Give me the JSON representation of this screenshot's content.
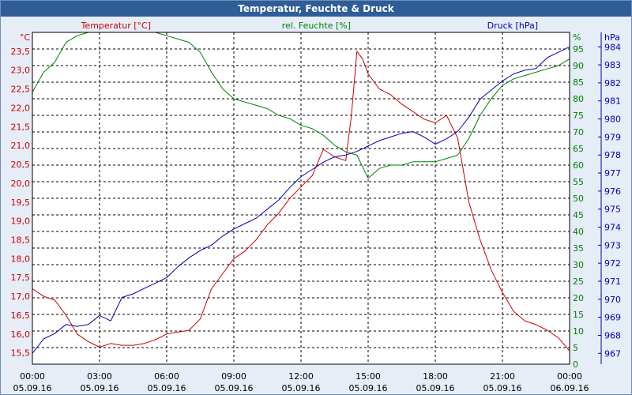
{
  "window": {
    "title": "Temperatur, Feuchte & Druck"
  },
  "colors": {
    "temperature": "#cc0000",
    "humidity": "#008000",
    "pressure": "#0000b0",
    "grid": "#000000",
    "background": "#ffffff"
  },
  "chart_data": {
    "type": "line",
    "title": "Temperatur, Feuchte & Druck",
    "grid": true,
    "x_ticks": [
      {
        "time": "00:00",
        "date": "05.09.16"
      },
      {
        "time": "03:00",
        "date": "05.09.16"
      },
      {
        "time": "06:00",
        "date": "05.09.16"
      },
      {
        "time": "09:00",
        "date": "05.09.16"
      },
      {
        "time": "12:00",
        "date": "05.09.16"
      },
      {
        "time": "15:00",
        "date": "05.09.16"
      },
      {
        "time": "18:00",
        "date": "05.09.16"
      },
      {
        "time": "21:00",
        "date": "05.09.16"
      },
      {
        "time": "00:00",
        "date": "06.09.16"
      }
    ],
    "xlim": [
      "2016-09-05 00:00",
      "2016-09-06 00:00"
    ],
    "axes": {
      "temperature": {
        "label": "Temperatur [°C]",
        "unit": "°C",
        "ylim": [
          15.2,
          24.0
        ],
        "ticks": [
          "15,5",
          "16,0",
          "16,5",
          "17,0",
          "17,5",
          "18,0",
          "18,5",
          "19,0",
          "19,5",
          "20,0",
          "20,5",
          "21,0",
          "21,5",
          "22,0",
          "22,5",
          "23,0",
          "23,5"
        ]
      },
      "humidity": {
        "label": "rel. Feuchte [%]",
        "unit": "%",
        "ylim": [
          0,
          100
        ],
        "ticks": [
          "0",
          "5",
          "10",
          "15",
          "20",
          "25",
          "30",
          "35",
          "40",
          "45",
          "50",
          "55",
          "60",
          "65",
          "70",
          "75",
          "80",
          "85",
          "90",
          "95"
        ]
      },
      "pressure": {
        "label": "Druck [hPa]",
        "unit": "hPa",
        "ylim": [
          966.4,
          984.8
        ],
        "ticks": [
          "967",
          "968",
          "969",
          "970",
          "971",
          "972",
          "973",
          "974",
          "975",
          "976",
          "977",
          "978",
          "979",
          "980",
          "981",
          "982",
          "983",
          "984"
        ]
      }
    },
    "series": [
      {
        "name": "Temperatur [°C]",
        "axis": "temperature",
        "x": [
          "00:00",
          "00:30",
          "01:00",
          "01:30",
          "02:00",
          "02:30",
          "03:00",
          "03:30",
          "04:00",
          "04:30",
          "05:00",
          "05:30",
          "06:00",
          "06:30",
          "07:00",
          "07:30",
          "08:00",
          "08:30",
          "09:00",
          "09:30",
          "10:00",
          "10:30",
          "11:00",
          "11:30",
          "12:00",
          "12:30",
          "13:00",
          "13:30",
          "14:00",
          "14:15",
          "14:30",
          "14:45",
          "15:00",
          "15:30",
          "16:00",
          "16:30",
          "17:00",
          "17:30",
          "18:00",
          "18:30",
          "19:00",
          "19:30",
          "20:00",
          "20:30",
          "21:00",
          "21:30",
          "22:00",
          "22:30",
          "23:00",
          "23:30",
          "24:00"
        ],
        "y": [
          17.2,
          17.0,
          16.9,
          16.5,
          16.0,
          15.8,
          15.65,
          15.75,
          15.7,
          15.7,
          15.75,
          15.85,
          16.0,
          16.05,
          16.1,
          16.4,
          17.2,
          17.6,
          18.0,
          18.2,
          18.5,
          18.9,
          19.2,
          19.6,
          19.9,
          20.2,
          20.9,
          20.7,
          20.6,
          21.8,
          23.5,
          23.3,
          22.9,
          22.5,
          22.35,
          22.1,
          21.9,
          21.7,
          21.6,
          21.8,
          21.2,
          19.5,
          18.5,
          17.7,
          17.1,
          16.6,
          16.35,
          16.25,
          16.1,
          15.9,
          15.55
        ]
      },
      {
        "name": "rel. Feuchte [%]",
        "axis": "humidity",
        "x": [
          "00:00",
          "00:30",
          "01:00",
          "01:30",
          "02:00",
          "02:30",
          "03:00",
          "03:30",
          "04:00",
          "04:30",
          "05:00",
          "05:30",
          "06:00",
          "06:30",
          "07:00",
          "07:30",
          "08:00",
          "08:30",
          "09:00",
          "09:30",
          "10:00",
          "10:30",
          "11:00",
          "11:30",
          "12:00",
          "12:30",
          "13:00",
          "13:30",
          "14:00",
          "14:30",
          "15:00",
          "15:30",
          "16:00",
          "16:30",
          "17:00",
          "17:30",
          "18:00",
          "18:30",
          "19:00",
          "19:30",
          "20:00",
          "20:30",
          "21:00",
          "21:30",
          "22:00",
          "22:30",
          "23:00",
          "23:30",
          "24:00"
        ],
        "y": [
          82,
          88,
          91,
          97,
          99,
          100,
          100,
          100,
          100,
          100,
          100,
          100,
          99,
          98,
          97,
          94,
          88,
          83,
          80,
          79,
          78,
          77,
          75,
          74,
          72,
          71,
          69,
          66,
          64,
          63,
          56,
          59,
          60,
          60,
          61,
          61,
          61,
          62,
          63,
          68,
          75,
          80,
          84,
          86,
          87,
          88,
          89,
          90,
          92
        ]
      },
      {
        "name": "Druck [hPa]",
        "axis": "pressure",
        "x": [
          "00:00",
          "00:30",
          "01:00",
          "01:30",
          "02:00",
          "02:30",
          "03:00",
          "03:30",
          "04:00",
          "04:30",
          "05:00",
          "05:30",
          "06:00",
          "06:30",
          "07:00",
          "07:30",
          "08:00",
          "08:30",
          "09:00",
          "09:30",
          "10:00",
          "10:30",
          "11:00",
          "11:30",
          "12:00",
          "12:30",
          "13:00",
          "13:30",
          "14:00",
          "14:30",
          "15:00",
          "15:30",
          "16:00",
          "16:30",
          "17:00",
          "17:30",
          "18:00",
          "18:30",
          "19:00",
          "19:30",
          "20:00",
          "20:30",
          "21:00",
          "21:30",
          "22:00",
          "22:30",
          "23:00",
          "23:30",
          "24:00"
        ],
        "y": [
          967.0,
          967.8,
          968.1,
          968.6,
          968.5,
          968.6,
          969.1,
          968.8,
          970.1,
          970.3,
          970.6,
          970.9,
          971.2,
          971.8,
          972.3,
          972.7,
          973.0,
          973.5,
          973.9,
          974.2,
          974.5,
          975.0,
          975.5,
          976.2,
          976.8,
          977.2,
          977.6,
          977.9,
          978.0,
          978.2,
          978.5,
          978.8,
          979.0,
          979.2,
          979.3,
          979.0,
          978.6,
          978.9,
          979.3,
          980.1,
          981.1,
          981.6,
          982.1,
          982.5,
          982.7,
          982.8,
          983.4,
          983.7,
          984.0
        ]
      }
    ]
  }
}
